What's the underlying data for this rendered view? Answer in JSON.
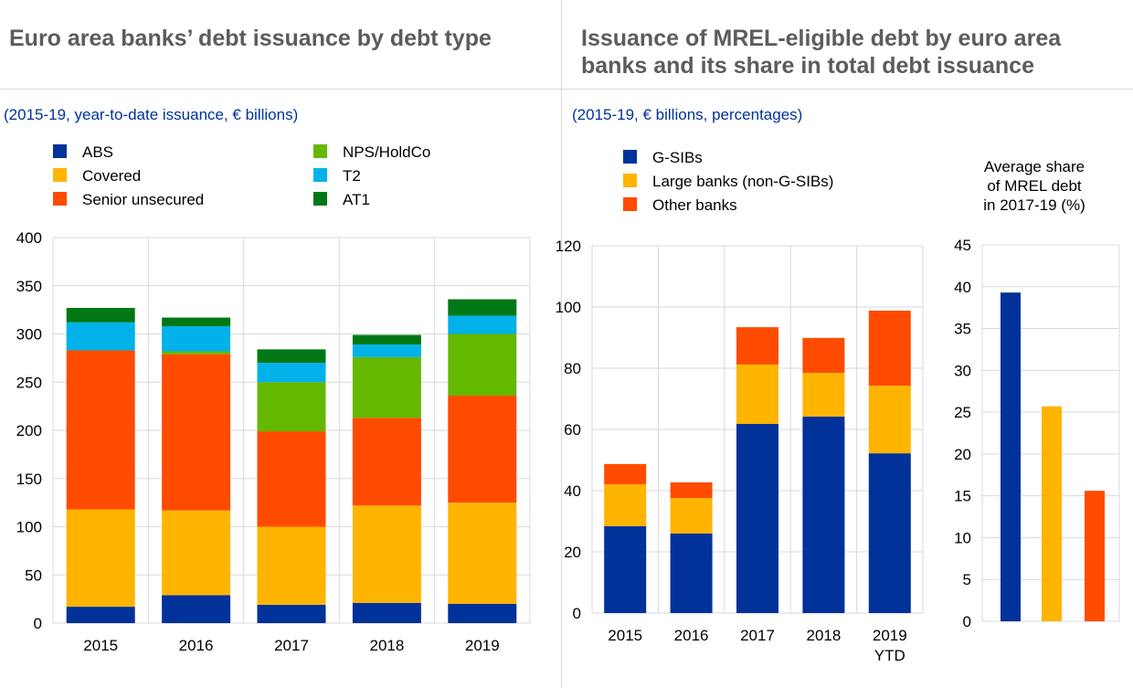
{
  "left_panel": {
    "title": "Euro area banks’ debt issuance by debt type",
    "subtitle": "(2015-19, year-to-date issuance, € billions)"
  },
  "right_panel": {
    "title_line1": "Issuance of MREL-eligible debt by euro area",
    "title_line2": "banks and its share in total debt issuance",
    "subtitle": "(2015-19, € billions, percentages)"
  },
  "chart_data": [
    {
      "type": "bar",
      "stacked": true,
      "categories": [
        "2015",
        "2016",
        "2017",
        "2018",
        "2019"
      ],
      "ylim": [
        0,
        400
      ],
      "yticks": [
        0,
        50,
        100,
        150,
        200,
        250,
        300,
        350,
        400
      ],
      "grid": true,
      "legend": "top",
      "series": [
        {
          "name": "ABS",
          "color": "#003299",
          "values": [
            17,
            29,
            19,
            21,
            20
          ]
        },
        {
          "name": "Covered",
          "color": "#ffb400",
          "values": [
            101,
            88,
            81,
            101,
            105
          ]
        },
        {
          "name": "Senior unsecured",
          "color": "#ff4b00",
          "values": [
            165,
            162,
            99,
            91,
            111
          ]
        },
        {
          "name": "NPS/HoldCo",
          "color": "#65b800",
          "values": [
            0,
            3,
            51,
            63,
            64
          ]
        },
        {
          "name": "T2",
          "color": "#00b1ea",
          "values": [
            29,
            26,
            20,
            13,
            19
          ]
        },
        {
          "name": "AT1",
          "color": "#007816",
          "values": [
            15,
            9,
            14,
            10,
            17
          ]
        }
      ]
    },
    {
      "type": "bar",
      "stacked": true,
      "categories": [
        "2015",
        "2016",
        "2017",
        "2018",
        "2019|YTD"
      ],
      "ylim": [
        0,
        120
      ],
      "yticks": [
        0,
        20,
        40,
        60,
        80,
        100,
        120
      ],
      "grid": true,
      "legend": "top",
      "series": [
        {
          "name": "G-SIBs",
          "color": "#003299",
          "values": [
            28.4,
            26.0,
            61.8,
            64.2,
            52.2
          ]
        },
        {
          "name": "Large banks (non-G-SIBs)",
          "color": "#ffb400",
          "values": [
            13.7,
            11.6,
            19.4,
            14.3,
            22.1
          ]
        },
        {
          "name": "Other banks",
          "color": "#ff4b00",
          "values": [
            6.6,
            5.1,
            12.2,
            11.4,
            24.5
          ]
        }
      ]
    },
    {
      "type": "bar",
      "title_lines": [
        "Average share",
        "of MREL debt",
        "in 2017-19 (%)"
      ],
      "categories": [
        "G-SIBs",
        "Large banks (non-G-SIBs)",
        "Other banks"
      ],
      "values": [
        39.3,
        25.7,
        15.6
      ],
      "colors": [
        "#003299",
        "#ffb400",
        "#ff4b00"
      ],
      "ylim": [
        0,
        45
      ],
      "yticks": [
        0,
        5,
        10,
        15,
        20,
        25,
        30,
        35,
        40,
        45
      ],
      "grid": true
    }
  ]
}
